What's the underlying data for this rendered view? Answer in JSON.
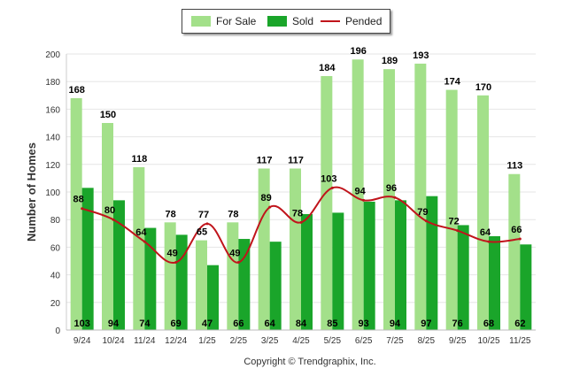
{
  "chart_data": {
    "type": "bar",
    "title": "",
    "xlabel": "",
    "ylabel": "Number of Homes",
    "ylim": [
      0,
      200
    ],
    "yticks": [
      0,
      20,
      40,
      60,
      80,
      100,
      120,
      140,
      160,
      180,
      200
    ],
    "grid": true,
    "legend_position": "top-center",
    "categories": [
      "9/24",
      "10/24",
      "11/24",
      "12/24",
      "1/25",
      "2/25",
      "3/25",
      "4/25",
      "5/25",
      "6/25",
      "7/25",
      "8/25",
      "9/25",
      "10/25",
      "11/25"
    ],
    "series": [
      {
        "name": "For Sale",
        "kind": "bar",
        "color": "#a3e08a",
        "values": [
          168,
          150,
          118,
          78,
          65,
          78,
          117,
          117,
          184,
          196,
          189,
          193,
          174,
          170,
          113
        ]
      },
      {
        "name": "Sold",
        "kind": "bar",
        "color": "#1aa52a",
        "values": [
          103,
          94,
          74,
          69,
          47,
          66,
          64,
          84,
          85,
          93,
          94,
          97,
          76,
          68,
          62
        ]
      },
      {
        "name": "Pended",
        "kind": "line",
        "color": "#c0141b",
        "values": [
          88,
          80,
          64,
          49,
          77,
          49,
          89,
          78,
          103,
          94,
          96,
          79,
          72,
          64,
          66
        ]
      }
    ]
  },
  "legend": {
    "for_sale": "For Sale",
    "sold": "Sold",
    "pended": "Pended"
  },
  "footer": {
    "copyright": "Copyright © Trendgraphix, Inc."
  }
}
